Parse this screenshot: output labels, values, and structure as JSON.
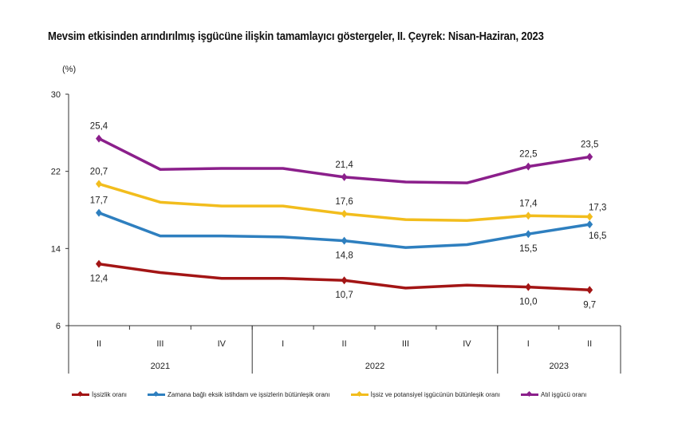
{
  "chart_data": {
    "type": "line",
    "title": "Mevsim etkisinden arındırılmış işgücüne ilişkin tamamlayıcı göstergeler, II. Çeyrek: Nisan-Haziran, 2023",
    "ylabel": "(%)",
    "ylim": [
      6,
      30
    ],
    "yticks": [
      "6",
      "14",
      "22",
      "30"
    ],
    "categories": [
      "II",
      "III",
      "IV",
      "I",
      "II",
      "III",
      "IV",
      "I",
      "II"
    ],
    "years": [
      {
        "label": "2021",
        "span": 3
      },
      {
        "label": "2022",
        "span": 4
      },
      {
        "label": "2023",
        "span": 2
      }
    ],
    "grid": false,
    "legend_position": "bottom",
    "series": [
      {
        "name": "İşsizlik oranı",
        "color": "#a31515",
        "values": [
          12.4,
          11.5,
          10.9,
          10.9,
          10.7,
          9.9,
          10.2,
          10.0,
          9.7
        ],
        "labels": {
          "0": "12,4",
          "4": "10,7",
          "7": "10,0",
          "8": "9,7"
        },
        "label_pos": "below"
      },
      {
        "name": "Zamana bağlı eksik istihdam ve işsizlerin bütünleşik oranı",
        "color": "#2e7fbf",
        "values": [
          17.7,
          15.3,
          15.3,
          15.2,
          14.8,
          14.1,
          14.4,
          15.5,
          16.5
        ],
        "labels": {
          "0": "17,7",
          "4": "14,8",
          "7": "15,5",
          "8": "16,5"
        },
        "label_pos": "mixed"
      },
      {
        "name": "İşsiz ve potansiyel işgücünün bütünleşik oranı",
        "color": "#f2bd1d",
        "values": [
          20.7,
          18.8,
          18.4,
          18.4,
          17.6,
          17.0,
          16.9,
          17.4,
          17.3
        ],
        "labels": {
          "0": "20,7",
          "4": "17,6",
          "7": "17,4",
          "8": "17,3"
        },
        "label_pos": "above"
      },
      {
        "name": "Atıl işgücü oranı",
        "color": "#8b1f8b",
        "values": [
          25.4,
          22.2,
          22.3,
          22.3,
          21.4,
          20.9,
          20.8,
          22.5,
          23.5
        ],
        "labels": {
          "0": "25,4",
          "4": "21,4",
          "7": "22,5",
          "8": "23,5"
        },
        "label_pos": "above"
      }
    ]
  }
}
